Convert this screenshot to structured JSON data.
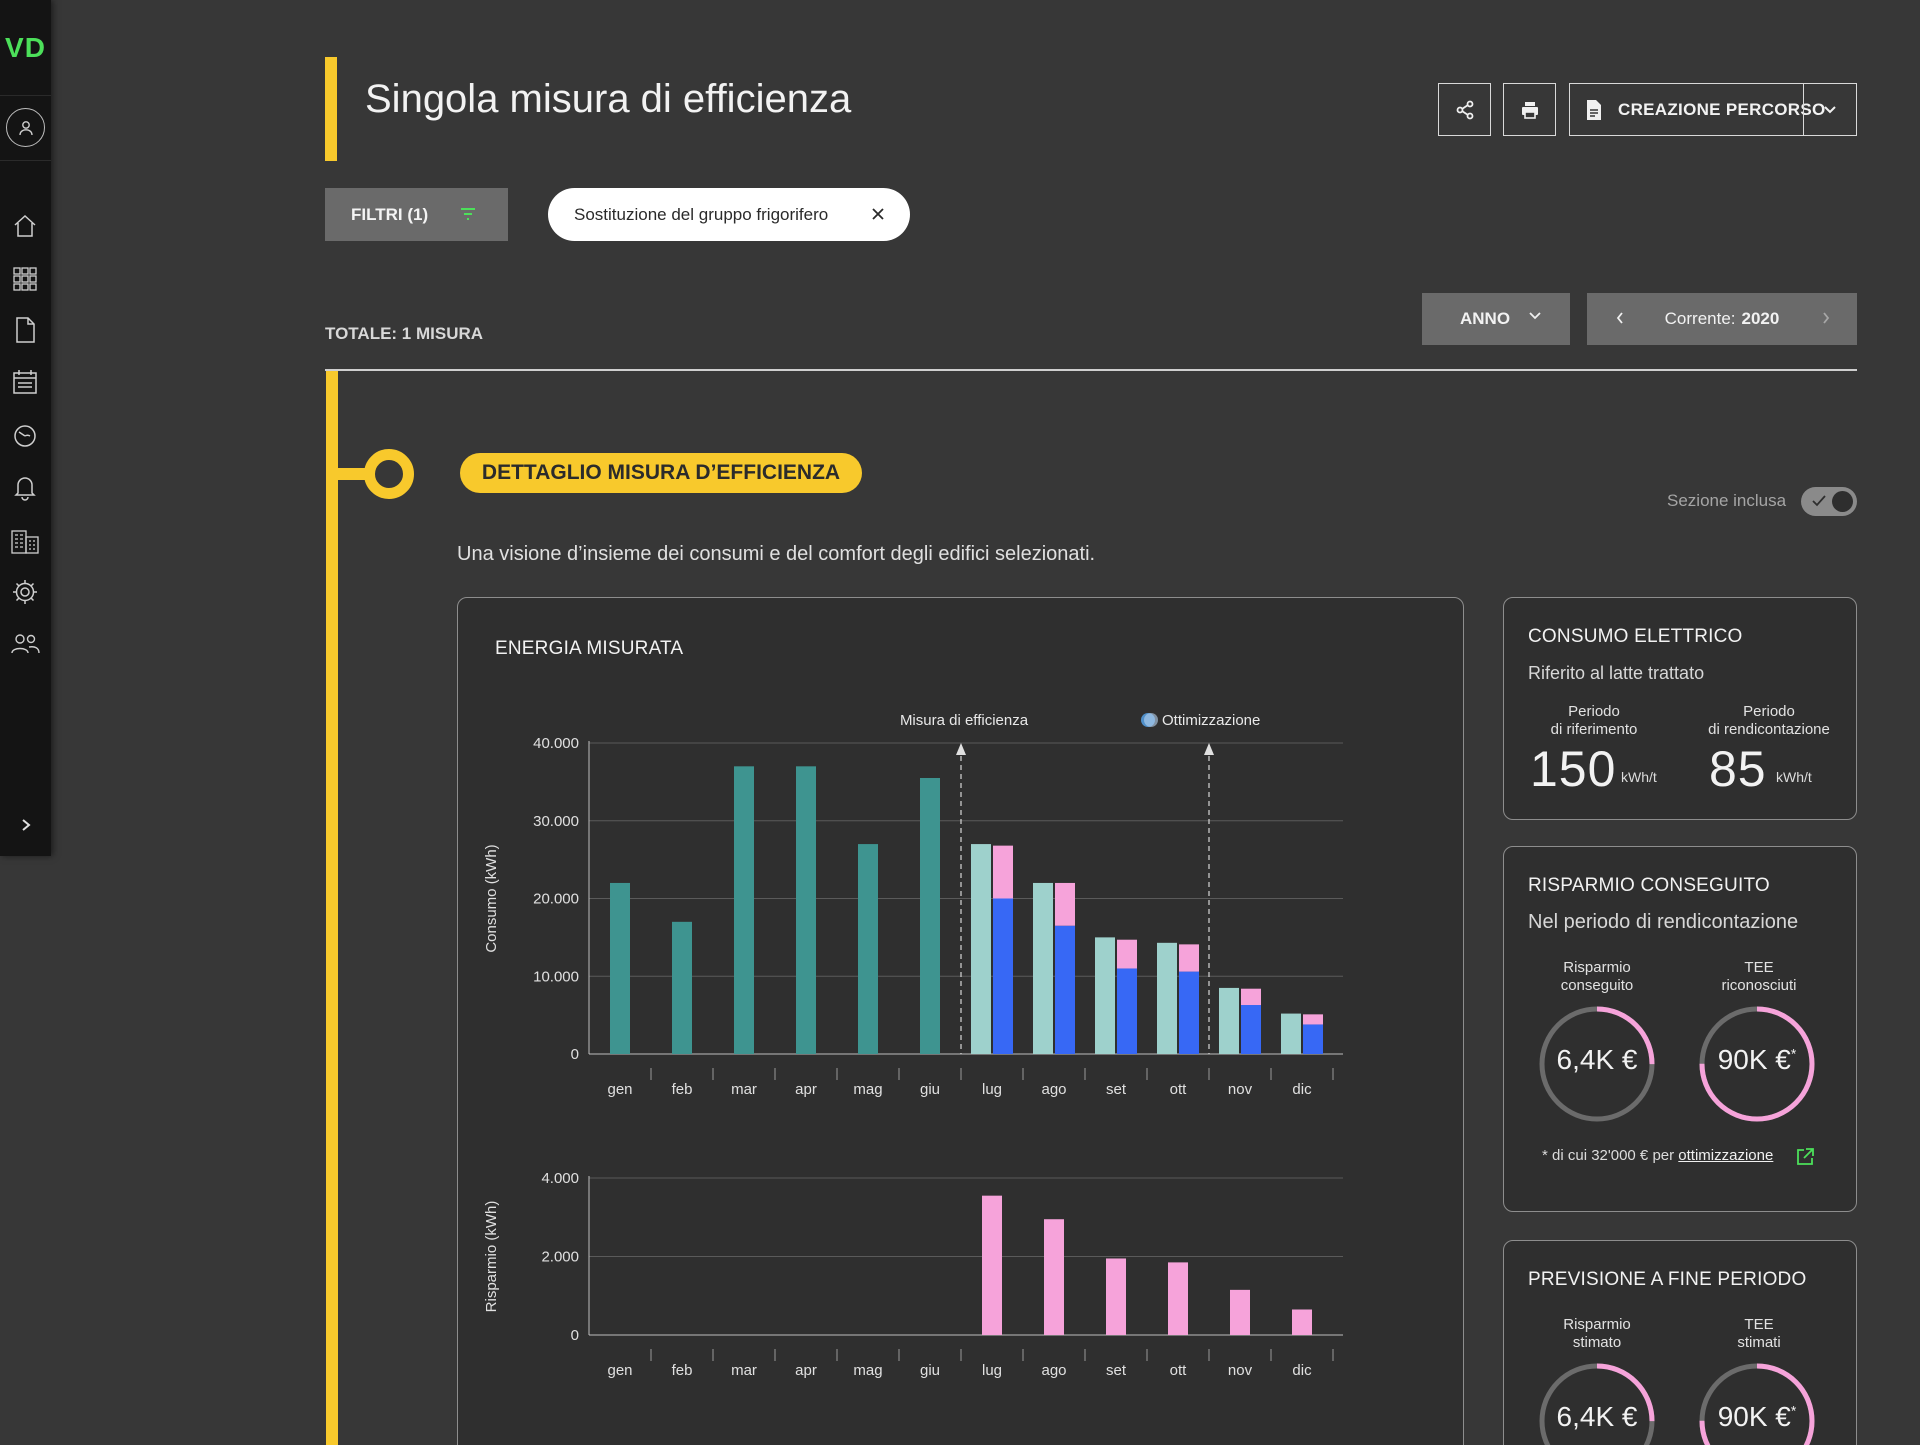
{
  "app": {
    "logo": "VD"
  },
  "header": {
    "title": "Singola misura di efficienza",
    "create_label": "CREAZIONE PERCORSO"
  },
  "filters": {
    "button_label": "FILTRI (1)",
    "chip_label": "Sostituzione del gruppo frigorifero"
  },
  "summary": {
    "total": "TOTALE: 1 MISURA"
  },
  "period": {
    "granularity": "ANNO",
    "current_prefix": "Corrente:",
    "current_year": "2020"
  },
  "section": {
    "title": "DETTAGLIO MISURA D’EFFICIENZA",
    "included_label": "Sezione inclusa",
    "included": true,
    "description": "Una visione d’insieme dei consumi e del comfort degli edifici selezionati."
  },
  "chart_card": {
    "title": "ENERGIA MISURATA"
  },
  "chart_data": [
    {
      "type": "bar",
      "ylabel": "Consumo (kWh)",
      "ylim": [
        0,
        40000
      ],
      "yticks": [
        "0",
        "10.000",
        "20.000",
        "30.000",
        "40.000"
      ],
      "categories": [
        "gen",
        "feb",
        "mar",
        "apr",
        "mag",
        "giu",
        "lug",
        "ago",
        "set",
        "ott",
        "nov",
        "dic"
      ],
      "annotations": [
        {
          "label": "Misura di efficienza",
          "at_category": "lug",
          "position": "before"
        },
        {
          "label": "Ottimizzazione",
          "at_category": "nov",
          "position": "before"
        }
      ],
      "series": [
        {
          "values": [
            22000,
            17000,
            37000,
            37000,
            27000,
            35500,
            null,
            null,
            null,
            null,
            null,
            null
          ],
          "color": "#3e9490"
        },
        {
          "values": [
            null,
            null,
            null,
            null,
            null,
            null,
            27000,
            22000,
            15000,
            14300,
            8500,
            5200
          ],
          "color": "#9ed1cc"
        },
        {
          "values": [
            null,
            null,
            null,
            null,
            null,
            null,
            20000,
            16500,
            11000,
            10600,
            6300,
            3800
          ],
          "color": "#3768f5",
          "stack": "b"
        },
        {
          "values": [
            null,
            null,
            null,
            null,
            null,
            null,
            6800,
            5500,
            3700,
            3500,
            2100,
            1300
          ],
          "color": "#f6a3da",
          "stack": "b"
        }
      ]
    },
    {
      "type": "bar",
      "ylabel": "Risparmio (kWh)",
      "ylim": [
        0,
        4000
      ],
      "yticks": [
        "0",
        "2.000",
        "4.000"
      ],
      "categories": [
        "gen",
        "feb",
        "mar",
        "apr",
        "mag",
        "giu",
        "lug",
        "ago",
        "set",
        "ott",
        "nov",
        "dic"
      ],
      "series": [
        {
          "values": [
            null,
            null,
            null,
            null,
            null,
            null,
            3550,
            2950,
            1950,
            1850,
            1150,
            650
          ],
          "color": "#f6a3da"
        }
      ]
    }
  ],
  "kpi_consumo": {
    "title": "CONSUMO ELETTRICO",
    "subtitle": "Riferito al latte trattato",
    "ref_label_1": "Periodo",
    "ref_label_2": "di riferimento",
    "ref_value": "150",
    "ref_unit": "kWh/t",
    "rend_label_1": "Periodo",
    "rend_label_2": "di rendicontazione",
    "rend_value": "85",
    "rend_unit": "kWh/t"
  },
  "kpi_risparmio": {
    "title": "RISPARMIO CONSEGUITO",
    "subtitle": "Nel periodo di rendicontazione",
    "left_label_1": "Risparmio",
    "left_label_2": "conseguito",
    "left_value": "6,4K €",
    "left_progress": 0.25,
    "right_label_1": "TEE",
    "right_label_2": "riconosciuti",
    "right_value": "90K €",
    "right_mark": "*",
    "right_progress": 0.75,
    "note_prefix": "* di cui 32'000 € per ",
    "note_link": "ottimizzazione"
  },
  "kpi_previsione": {
    "title": "PREVISIONE A FINE PERIODO",
    "left_label_1": "Risparmio",
    "left_label_2": "stimato",
    "left_value": "6,4K €",
    "left_progress": 0.25,
    "right_label_1": "TEE",
    "right_label_2": "stimati",
    "right_value": "90K €",
    "right_mark": "*",
    "right_progress": 0.75
  },
  "colors": {
    "accent": "#f8c92c",
    "brand_green": "#4ce05a",
    "teal": "#3e9490",
    "teal_light": "#9ed1cc",
    "blue": "#3768f5",
    "pink": "#f6a3da"
  }
}
